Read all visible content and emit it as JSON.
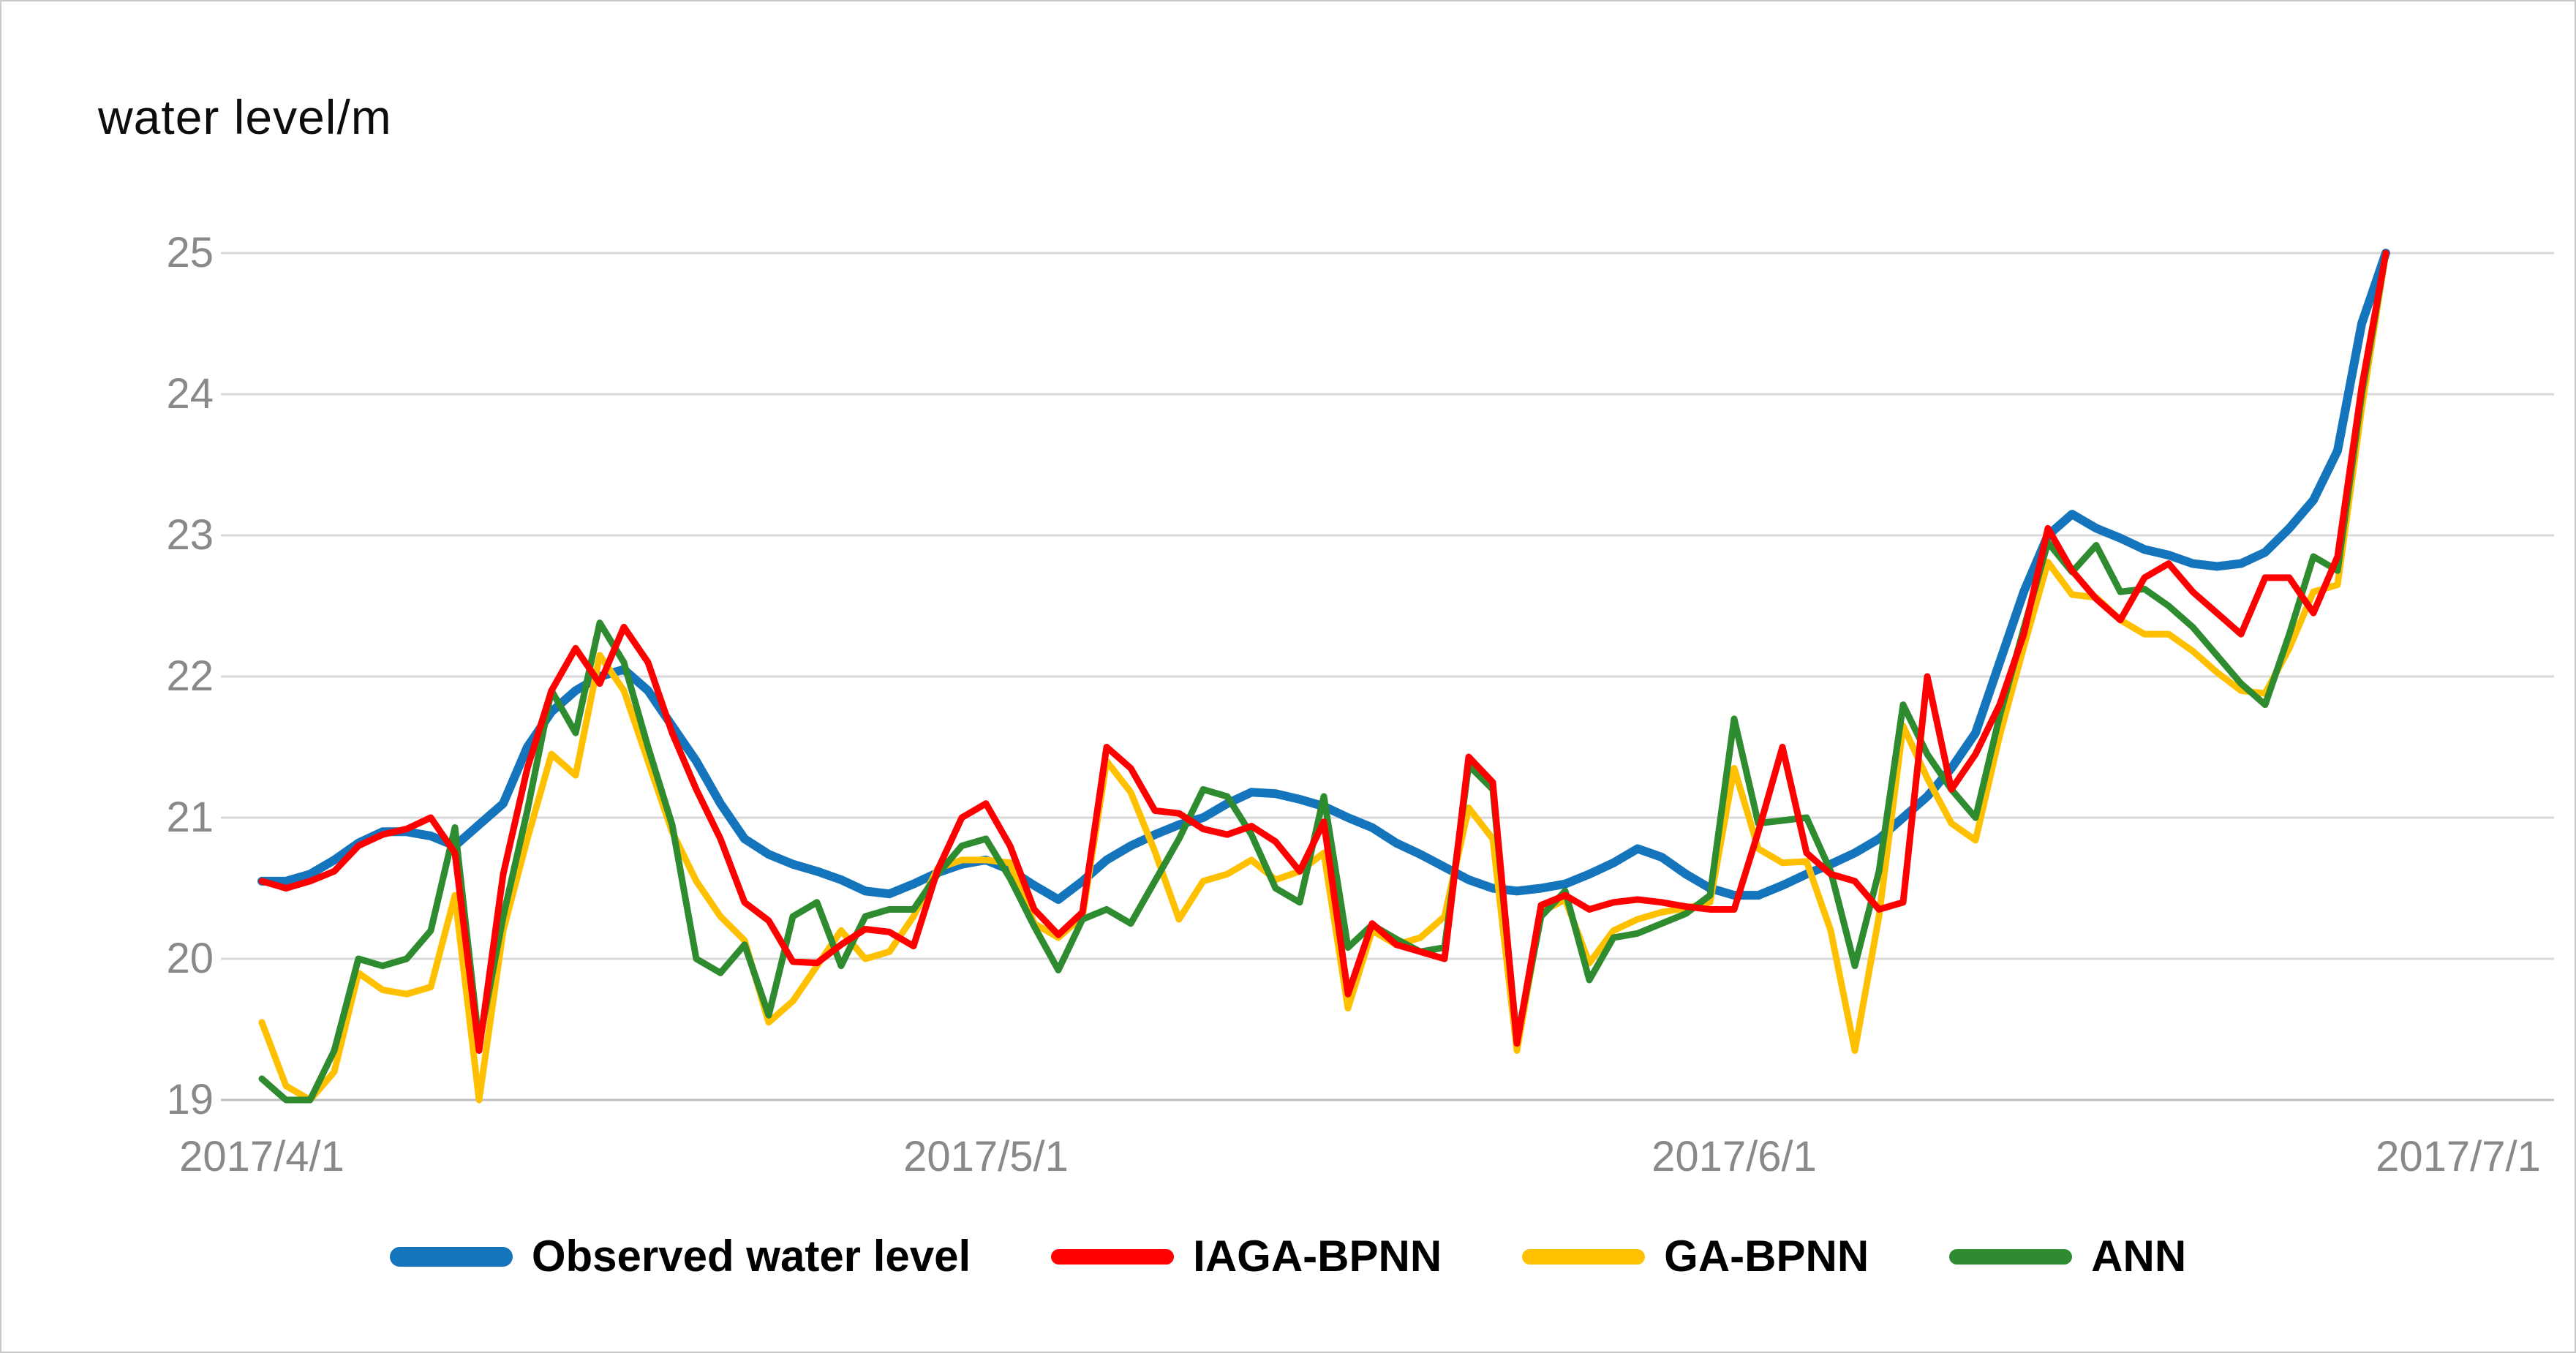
{
  "title": "water level/m",
  "chart_data": {
    "type": "line",
    "title": "water level/m",
    "x_axis": {
      "tick_labels": [
        "2017/4/1",
        "2017/5/1",
        "2017/6/1",
        "2017/7/1"
      ],
      "tick_day_index": [
        0,
        30,
        61,
        91
      ],
      "days_total": 91
    },
    "y_axis": {
      "min": 19,
      "max": 25,
      "ticks": [
        25,
        24,
        23,
        22,
        21,
        20,
        19
      ]
    },
    "grid": true,
    "legend_position": "bottom",
    "series": [
      {
        "name": "Observed water level",
        "color": "#1474bc",
        "emphasis": "thick",
        "values": [
          20.55,
          20.55,
          20.6,
          20.7,
          20.82,
          20.9,
          20.9,
          20.87,
          20.8,
          20.95,
          21.1,
          21.5,
          21.75,
          21.9,
          22.0,
          22.05,
          21.9,
          21.65,
          21.4,
          21.1,
          20.85,
          20.74,
          20.67,
          20.62,
          20.56,
          20.48,
          20.46,
          20.53,
          20.61,
          20.67,
          20.7,
          20.63,
          20.52,
          20.42,
          20.55,
          20.7,
          20.8,
          20.88,
          20.95,
          21.0,
          21.1,
          21.18,
          21.17,
          21.13,
          21.08,
          21.0,
          20.93,
          20.82,
          20.74,
          20.65,
          20.56,
          20.5,
          20.48,
          20.5,
          20.53,
          20.6,
          20.68,
          20.78,
          20.72,
          20.6,
          20.5,
          20.45,
          20.45,
          20.52,
          20.6,
          20.67,
          20.75,
          20.85,
          21.0,
          21.15,
          21.35,
          21.6,
          22.1,
          22.6,
          23.0,
          23.15,
          23.05,
          22.98,
          22.9,
          22.86,
          22.8,
          22.78,
          22.8,
          22.88,
          23.05,
          23.25,
          23.6,
          24.5,
          25.0
        ]
      },
      {
        "name": "IAGA-BPNN",
        "color": "#fe0000",
        "emphasis": "normal",
        "values": [
          20.55,
          20.5,
          20.55,
          20.62,
          20.8,
          20.88,
          20.92,
          21.0,
          20.75,
          19.35,
          20.6,
          21.35,
          21.9,
          22.2,
          21.95,
          22.35,
          22.1,
          21.6,
          21.2,
          20.85,
          20.4,
          20.27,
          19.98,
          19.97,
          20.1,
          20.21,
          20.19,
          20.09,
          20.63,
          21.0,
          21.1,
          20.8,
          20.35,
          20.17,
          20.33,
          21.5,
          21.35,
          21.05,
          21.03,
          20.92,
          20.88,
          20.94,
          20.83,
          20.62,
          20.97,
          19.75,
          20.25,
          20.1,
          20.05,
          20.0,
          21.43,
          21.25,
          19.4,
          20.38,
          20.45,
          20.35,
          20.4,
          20.42,
          20.4,
          20.37,
          20.35,
          20.35,
          20.9,
          21.5,
          20.75,
          20.6,
          20.55,
          20.35,
          20.4,
          22.0,
          21.2,
          21.45,
          21.8,
          22.3,
          23.05,
          22.75,
          22.55,
          22.4,
          22.7,
          22.8,
          22.6,
          22.45,
          22.3,
          22.7,
          22.7,
          22.45,
          22.85,
          24.05,
          25.0
        ]
      },
      {
        "name": "GA-BPNN",
        "color": "#ffc000",
        "emphasis": "normal",
        "values": [
          19.55,
          19.1,
          19.0,
          19.2,
          19.9,
          19.78,
          19.75,
          19.8,
          20.45,
          19.0,
          20.2,
          20.85,
          21.45,
          21.3,
          22.15,
          21.9,
          21.4,
          20.9,
          20.55,
          20.3,
          20.13,
          19.55,
          19.7,
          19.95,
          20.2,
          20.0,
          20.05,
          20.3,
          20.64,
          20.7,
          20.7,
          20.68,
          20.25,
          20.15,
          20.3,
          21.4,
          21.18,
          20.76,
          20.28,
          20.55,
          20.6,
          20.7,
          20.56,
          20.62,
          20.75,
          19.65,
          20.2,
          20.1,
          20.15,
          20.3,
          21.07,
          20.85,
          19.35,
          20.33,
          20.42,
          19.97,
          20.2,
          20.28,
          20.33,
          20.36,
          20.4,
          21.35,
          20.78,
          20.68,
          20.69,
          20.2,
          19.35,
          20.3,
          21.65,
          21.28,
          20.96,
          20.84,
          21.58,
          22.21,
          22.81,
          22.58,
          22.56,
          22.4,
          22.3,
          22.3,
          22.18,
          22.03,
          21.9,
          21.88,
          22.2,
          22.6,
          22.65,
          23.9,
          25.0
        ]
      },
      {
        "name": "ANN",
        "color": "#2f8b2f",
        "emphasis": "normal",
        "values": [
          19.15,
          19.0,
          19.0,
          19.35,
          20.0,
          19.95,
          20.0,
          20.2,
          20.93,
          19.4,
          20.3,
          21.05,
          21.9,
          21.6,
          22.38,
          22.1,
          21.5,
          20.95,
          20.0,
          19.9,
          20.1,
          19.6,
          20.3,
          20.4,
          19.95,
          20.3,
          20.35,
          20.35,
          20.6,
          20.8,
          20.85,
          20.57,
          20.23,
          19.92,
          20.28,
          20.35,
          20.25,
          20.55,
          20.85,
          21.2,
          21.15,
          20.88,
          20.5,
          20.4,
          21.15,
          20.08,
          20.24,
          20.14,
          20.05,
          20.08,
          21.37,
          21.2,
          19.42,
          20.3,
          20.48,
          19.85,
          20.15,
          20.18,
          20.25,
          20.32,
          20.45,
          21.7,
          20.96,
          20.98,
          21.0,
          20.62,
          19.95,
          20.62,
          21.8,
          21.45,
          21.2,
          21.0,
          21.72,
          22.34,
          22.95,
          22.74,
          22.93,
          22.6,
          22.62,
          22.5,
          22.35,
          22.15,
          21.95,
          21.8,
          22.3,
          22.85,
          22.75,
          24.0,
          25.0
        ]
      }
    ],
    "colors": {
      "gridline": "#d9d9d9",
      "axis_line": "#bfbfbf",
      "tick_text": "#898989",
      "title_text": "#0d0d0d",
      "legend_text": "#000000"
    }
  }
}
